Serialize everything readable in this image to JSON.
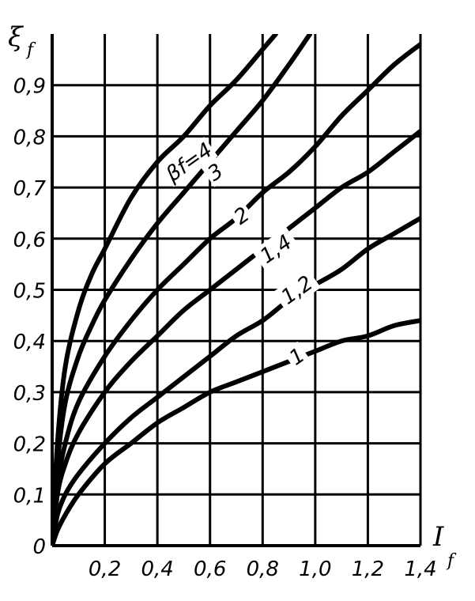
{
  "chart_data": {
    "type": "line",
    "title": "",
    "xlabel": "I",
    "xlabel_sub": "f",
    "ylabel": "ξ",
    "ylabel_sub": "f",
    "xlim": [
      0,
      1.4
    ],
    "ylim": [
      0,
      1.0
    ],
    "x_ticks": [
      "0,2",
      "0,4",
      "0,6",
      "0,8",
      "1,0",
      "1,2",
      "1,4"
    ],
    "y_ticks": [
      "0",
      "0,1",
      "0,2",
      "0,3",
      "0,4",
      "0,5",
      "0,6",
      "0,7",
      "0,8",
      "0,9"
    ],
    "x_tick_values": [
      0.2,
      0.4,
      0.6,
      0.8,
      1.0,
      1.2,
      1.4
    ],
    "y_tick_values": [
      0,
      0.1,
      0.2,
      0.3,
      0.4,
      0.5,
      0.6,
      0.7,
      0.8,
      0.9
    ],
    "grid": true,
    "series": [
      {
        "name": "4",
        "label_text": "βf=4",
        "x": [
          0,
          0.02,
          0.05,
          0.1,
          0.15,
          0.2,
          0.3,
          0.4,
          0.5,
          0.6,
          0.7,
          0.8,
          0.85
        ],
        "y": [
          0,
          0.2,
          0.35,
          0.46,
          0.53,
          0.58,
          0.68,
          0.75,
          0.8,
          0.86,
          0.91,
          0.97,
          1.0
        ]
      },
      {
        "name": "3",
        "label_text": "3",
        "x": [
          0,
          0.02,
          0.05,
          0.1,
          0.15,
          0.2,
          0.3,
          0.4,
          0.5,
          0.6,
          0.7,
          0.8,
          0.9,
          0.98
        ],
        "y": [
          0,
          0.16,
          0.28,
          0.37,
          0.43,
          0.48,
          0.56,
          0.63,
          0.69,
          0.75,
          0.81,
          0.87,
          0.94,
          1.0
        ]
      },
      {
        "name": "2",
        "label_text": "2",
        "x": [
          0,
          0.02,
          0.05,
          0.1,
          0.2,
          0.3,
          0.4,
          0.5,
          0.6,
          0.7,
          0.8,
          0.9,
          1.0,
          1.1,
          1.2,
          1.3,
          1.4
        ],
        "y": [
          0,
          0.12,
          0.2,
          0.28,
          0.37,
          0.44,
          0.5,
          0.55,
          0.6,
          0.64,
          0.69,
          0.73,
          0.78,
          0.84,
          0.89,
          0.94,
          0.98
        ]
      },
      {
        "name": "1,4",
        "label_text": "1,4",
        "x": [
          0,
          0.02,
          0.05,
          0.1,
          0.2,
          0.3,
          0.4,
          0.5,
          0.6,
          0.7,
          0.8,
          0.9,
          1.0,
          1.1,
          1.2,
          1.3,
          1.4
        ],
        "y": [
          0,
          0.1,
          0.16,
          0.22,
          0.3,
          0.36,
          0.41,
          0.46,
          0.5,
          0.54,
          0.58,
          0.62,
          0.66,
          0.7,
          0.73,
          0.77,
          0.81
        ]
      },
      {
        "name": "1,2",
        "label_text": "1,2",
        "x": [
          0,
          0.02,
          0.05,
          0.1,
          0.2,
          0.3,
          0.4,
          0.5,
          0.6,
          0.7,
          0.8,
          0.9,
          1.0,
          1.1,
          1.2,
          1.3,
          1.4
        ],
        "y": [
          0,
          0.06,
          0.1,
          0.14,
          0.2,
          0.25,
          0.29,
          0.33,
          0.37,
          0.41,
          0.44,
          0.48,
          0.51,
          0.54,
          0.58,
          0.61,
          0.64
        ]
      },
      {
        "name": "1",
        "label_text": "1",
        "x": [
          0,
          0.02,
          0.05,
          0.1,
          0.2,
          0.3,
          0.4,
          0.5,
          0.6,
          0.7,
          0.8,
          0.9,
          1.0,
          1.1,
          1.2,
          1.3,
          1.4
        ],
        "y": [
          0,
          0.03,
          0.06,
          0.1,
          0.16,
          0.2,
          0.24,
          0.27,
          0.3,
          0.32,
          0.34,
          0.36,
          0.38,
          0.4,
          0.41,
          0.43,
          0.44
        ]
      }
    ],
    "curve_labels": [
      {
        "series": "4",
        "x": 0.52,
        "y": 0.75
      },
      {
        "series": "3",
        "x": 0.62,
        "y": 0.73
      },
      {
        "series": "2",
        "x": 0.72,
        "y": 0.645
      },
      {
        "series": "1,4",
        "x": 0.85,
        "y": 0.58
      },
      {
        "series": "1,2",
        "x": 0.93,
        "y": 0.5
      },
      {
        "series": "1",
        "x": 0.93,
        "y": 0.37
      }
    ]
  }
}
